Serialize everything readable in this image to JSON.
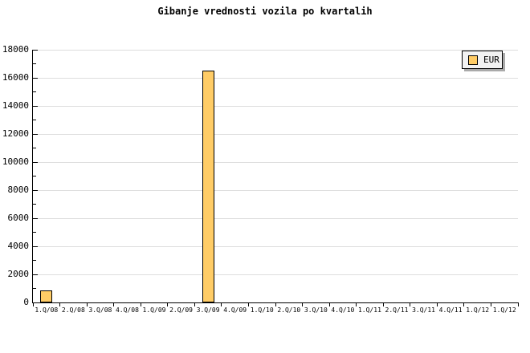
{
  "title": "Gibanje vrednosti vozila po kvartalih",
  "legend": {
    "label": "EUR"
  },
  "colors": {
    "bar_fill": "#FFCC66",
    "bar_border": "#000000",
    "grid": "#DDDDDD",
    "axis": "#000000",
    "legend_bg": "#F2F2F2",
    "legend_shadow": "#AAAAAA",
    "background": "#FFFFFF"
  },
  "chart_data": {
    "type": "bar",
    "title": "Gibanje vrednosti vozila po kvartalih",
    "categories": [
      "1.Q/08",
      "2.Q/08",
      "3.Q/08",
      "4.Q/08",
      "1.Q/09",
      "2.Q/09",
      "3.Q/09",
      "4.Q/09",
      "1.Q/10",
      "2.Q/10",
      "3.Q/10",
      "4.Q/10",
      "1.Q/11",
      "2.Q/11",
      "3.Q/11",
      "4.Q/11",
      "1.Q/12",
      "1.Q/12"
    ],
    "series": [
      {
        "name": "EUR",
        "color": "#FFCC66",
        "values": [
          850,
          0,
          0,
          0,
          0,
          0,
          16500,
          0,
          0,
          0,
          0,
          0,
          0,
          0,
          0,
          0,
          0,
          0
        ]
      }
    ],
    "xlabel": "",
    "ylabel": "",
    "ylim": [
      0,
      18000
    ],
    "y_major_step": 2000,
    "y_minor_step": 1000,
    "y_tick_labels": [
      "0",
      "2000",
      "4000",
      "6000",
      "8000",
      "10000",
      "12000",
      "14000",
      "16000",
      "18000"
    ],
    "grid": true,
    "legend_position": "top-right"
  }
}
